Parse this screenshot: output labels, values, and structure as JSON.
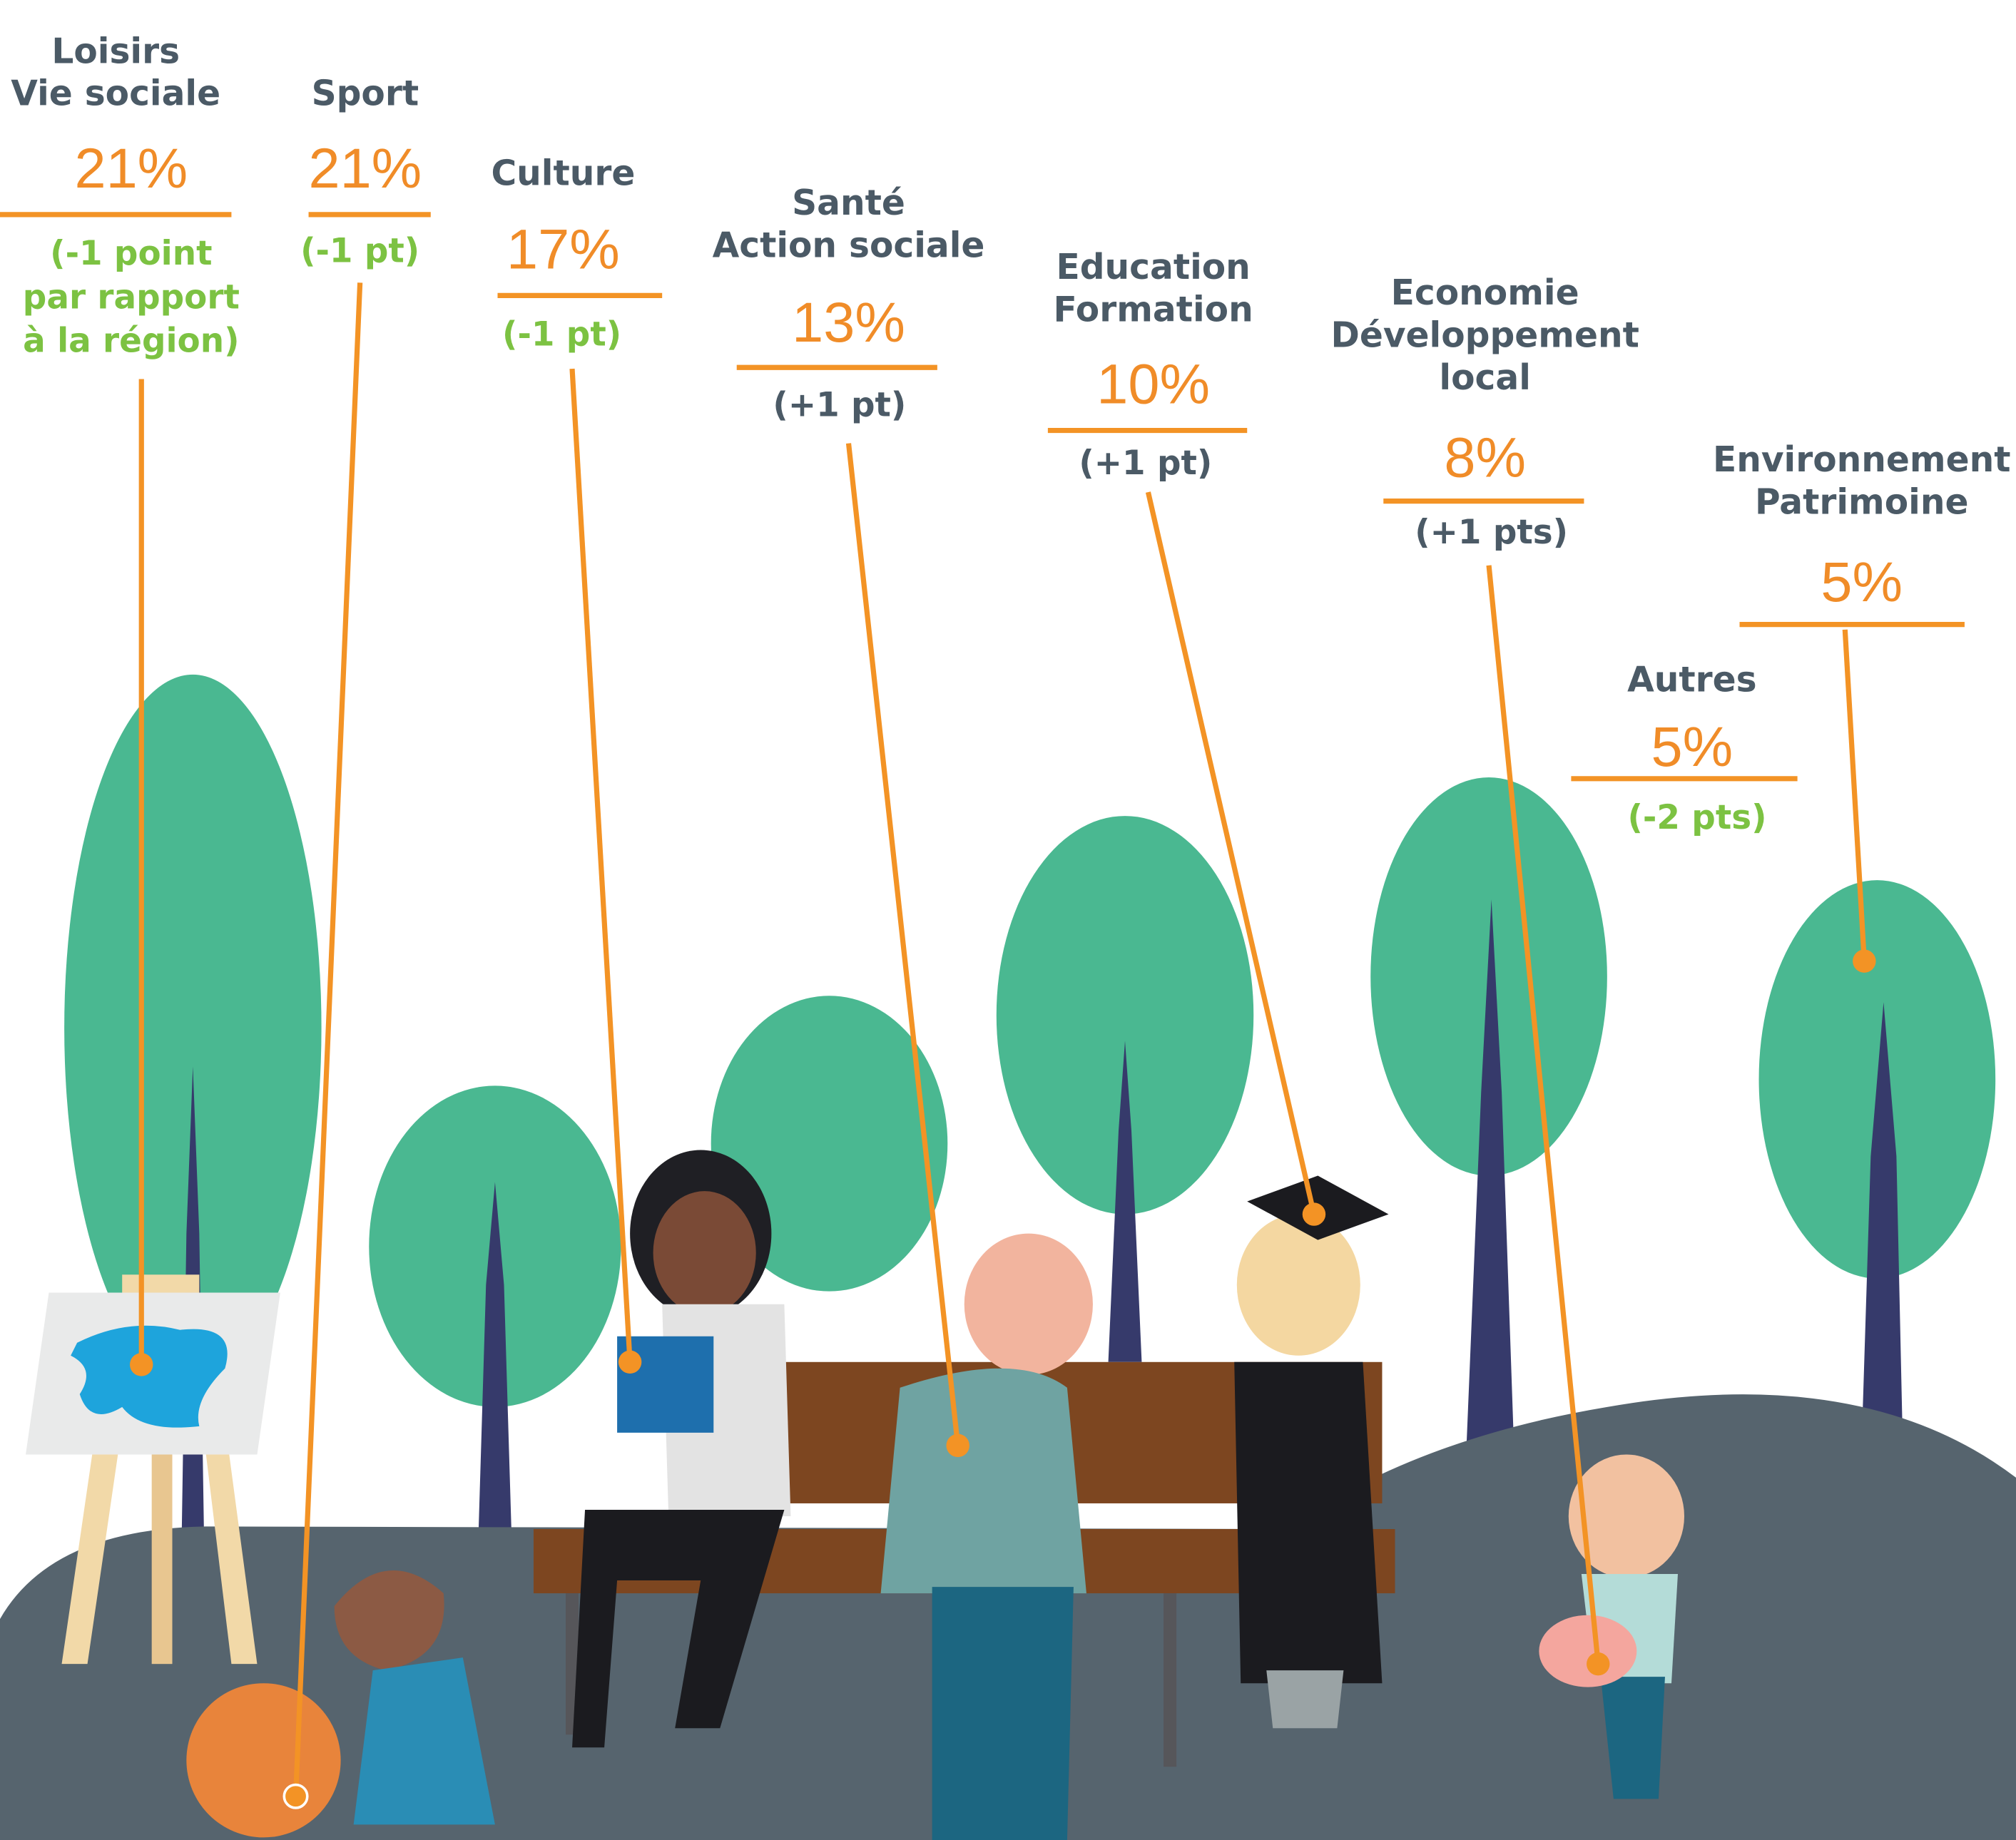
{
  "items": [
    {
      "label": [
        "Loisirs",
        "Vie sociale"
      ],
      "value": "21%",
      "change": [
        "(-1 point",
        "par rapport",
        "à la région)"
      ]
    },
    {
      "label": [
        "Sport"
      ],
      "value": "21%",
      "change": [
        "(-1 pt)"
      ]
    },
    {
      "label": [
        "Culture"
      ],
      "value": "17%",
      "change": [
        "(-1 pt)"
      ]
    },
    {
      "label": [
        "Santé",
        "Action sociale"
      ],
      "value": "13%",
      "change": [
        "(+1 pt)"
      ]
    },
    {
      "label": [
        "Education",
        "Formation"
      ],
      "value": "10%",
      "change": [
        "(+1 pt)"
      ]
    },
    {
      "label": [
        "Economie",
        "Développement",
        "local"
      ],
      "value": "8%",
      "change": [
        "(+1 pts)"
      ]
    },
    {
      "label": [
        "Environnement",
        "Patrimoine"
      ],
      "value": "5%",
      "change": []
    },
    {
      "label": [
        "Autres"
      ],
      "value": "5%",
      "change": [
        "(-2 pts)"
      ]
    }
  ]
}
